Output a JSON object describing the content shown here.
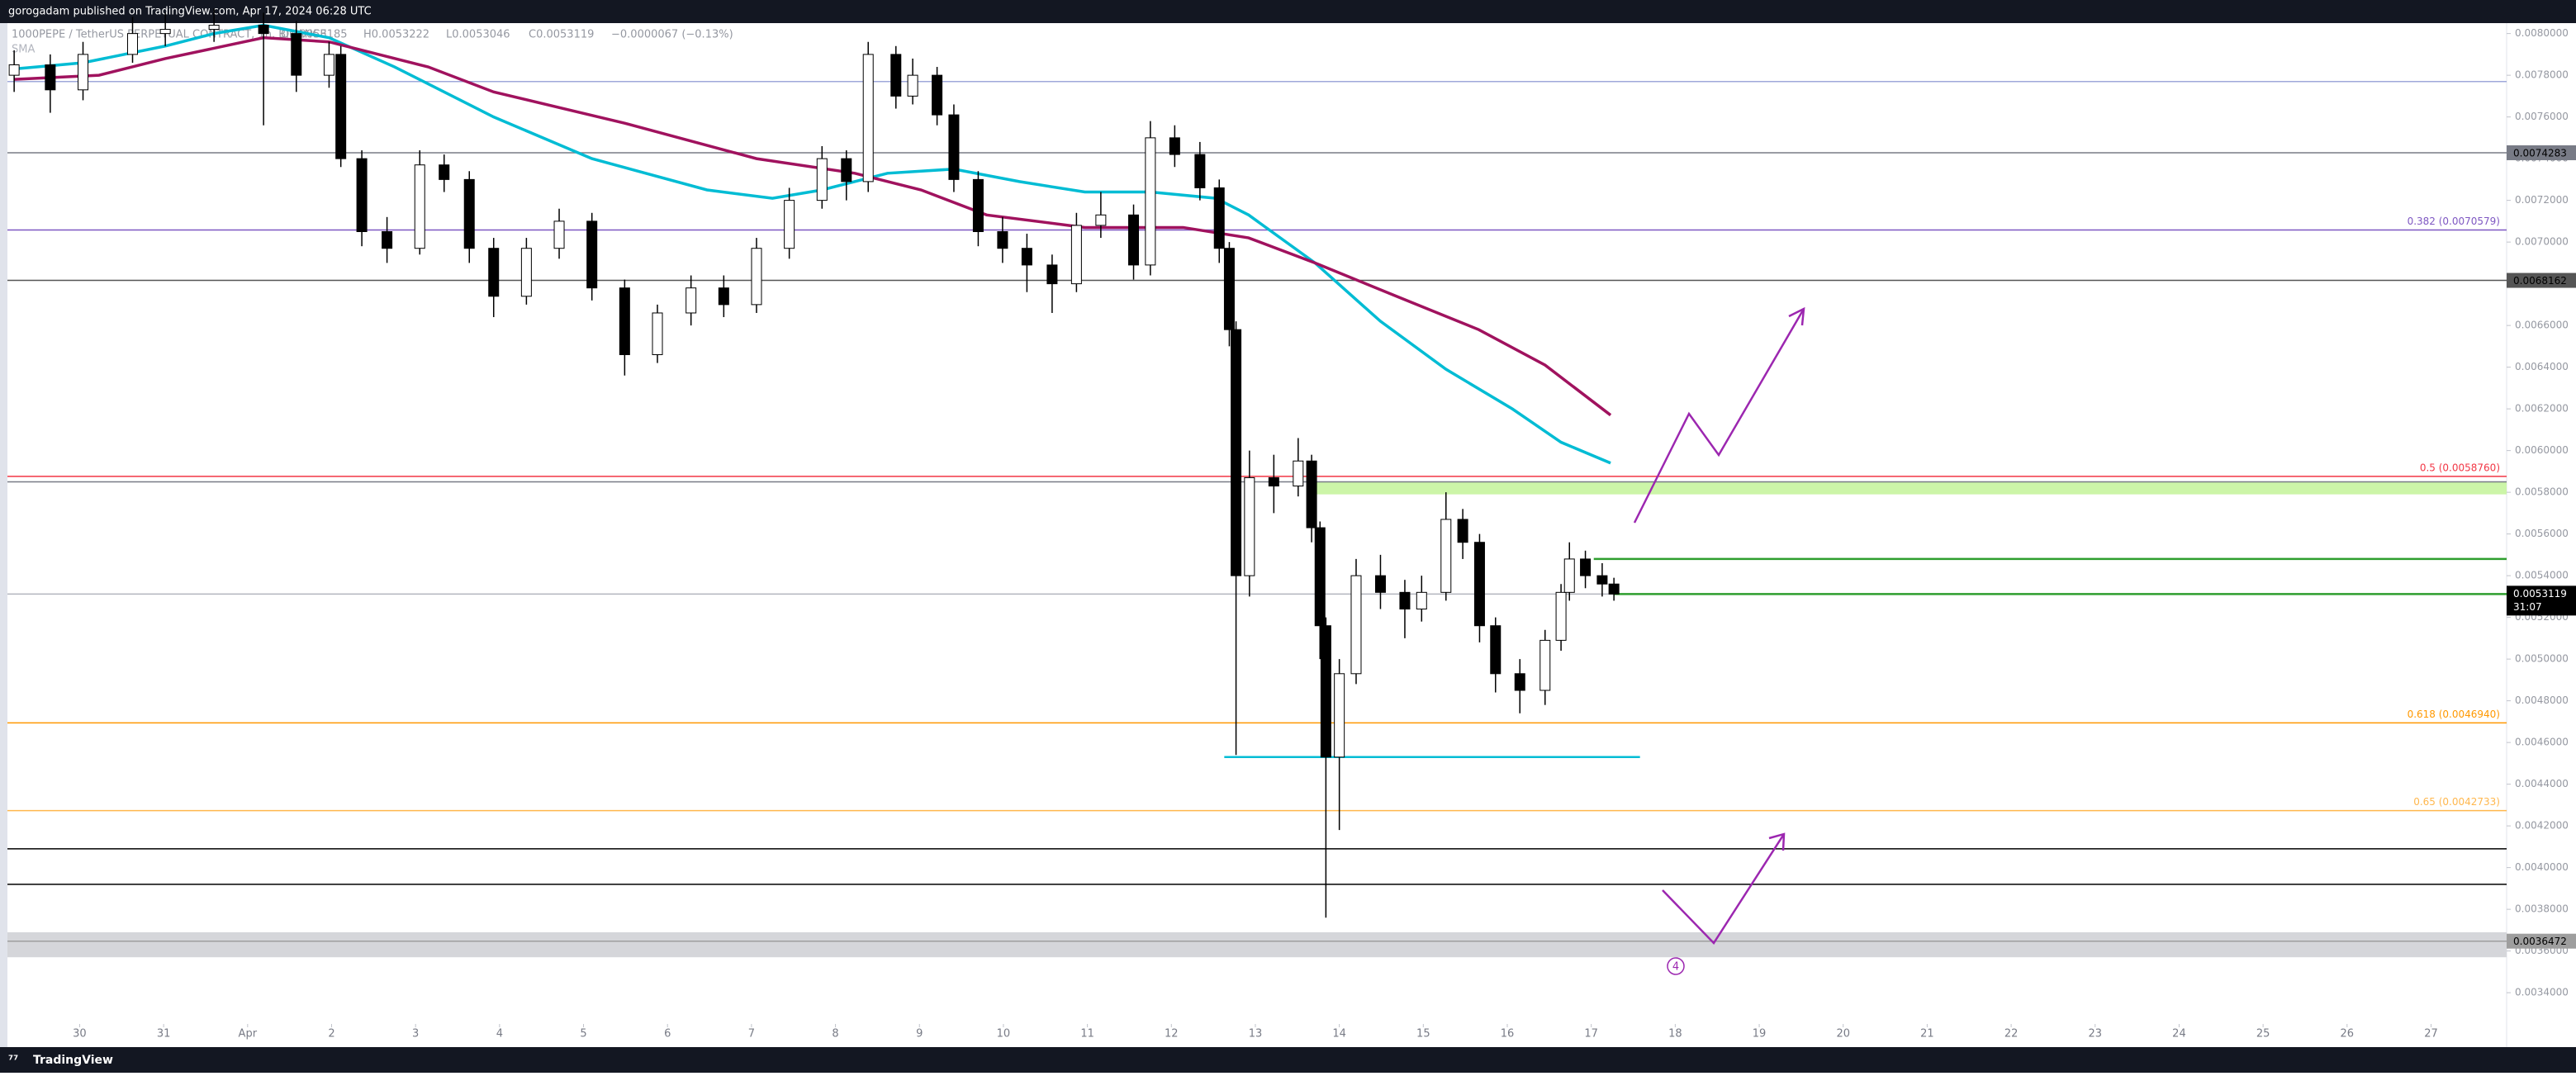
{
  "chart_data": {
    "type": "candlestick",
    "title": "gorogadam published on TradingView.com, Apr 17, 2024 06:28 UTC",
    "symbol": "1000PEPE / TetherUS PERPETUAL CONTRACT, 1h, BINANCE",
    "ohlc_text": [
      "O0.0053185",
      "H0.0053222",
      "L0.0053046",
      "C0.0053119",
      "−0.0000067 (−0.13%)"
    ],
    "indicator": "SMA",
    "footer": "TradingView",
    "countdown": "31:07",
    "wave_label": "4",
    "grid": false,
    "up_color": "#ffffff",
    "down_color": "#000000",
    "xlim": [
      -0.86,
      28.9
    ],
    "ylim": [
      0.00325,
      0.00805
    ],
    "xticks": [
      {
        "value": 0,
        "label": "30"
      },
      {
        "value": 1,
        "label": "31"
      },
      {
        "value": 2,
        "label": "Apr"
      },
      {
        "value": 3,
        "label": "2"
      },
      {
        "value": 4,
        "label": "3"
      },
      {
        "value": 5,
        "label": "4"
      },
      {
        "value": 6,
        "label": "5"
      },
      {
        "value": 7,
        "label": "6"
      },
      {
        "value": 8,
        "label": "7"
      },
      {
        "value": 9,
        "label": "8"
      },
      {
        "value": 10,
        "label": "9"
      },
      {
        "value": 11,
        "label": "10"
      },
      {
        "value": 12,
        "label": "11"
      },
      {
        "value": 13,
        "label": "12"
      },
      {
        "value": 14,
        "label": "13"
      },
      {
        "value": 15,
        "label": "14"
      },
      {
        "value": 16,
        "label": "15"
      },
      {
        "value": 17,
        "label": "16"
      },
      {
        "value": 18,
        "label": "17"
      },
      {
        "value": 19,
        "label": "18"
      },
      {
        "value": 20,
        "label": "19"
      },
      {
        "value": 21,
        "label": "20"
      },
      {
        "value": 22,
        "label": "21"
      },
      {
        "value": 23,
        "label": "22"
      },
      {
        "value": 24,
        "label": "23"
      },
      {
        "value": 25,
        "label": "24"
      },
      {
        "value": 26,
        "label": "25"
      },
      {
        "value": 27,
        "label": "26"
      },
      {
        "value": 28,
        "label": "27"
      }
    ],
    "yticks": [
      {
        "value": 0.0034,
        "label": "0.0034000"
      },
      {
        "value": 0.0036,
        "label": "0.0036000"
      },
      {
        "value": 0.0038,
        "label": "0.0038000"
      },
      {
        "value": 0.004,
        "label": "0.0040000"
      },
      {
        "value": 0.0042,
        "label": "0.0042000"
      },
      {
        "value": 0.0044,
        "label": "0.0044000"
      },
      {
        "value": 0.0046,
        "label": "0.0046000"
      },
      {
        "value": 0.0048,
        "label": "0.0048000"
      },
      {
        "value": 0.005,
        "label": "0.0050000"
      },
      {
        "value": 0.0052,
        "label": "0.0052000"
      },
      {
        "value": 0.0054,
        "label": "0.0054000"
      },
      {
        "value": 0.0056,
        "label": "0.0056000"
      },
      {
        "value": 0.0058,
        "label": "0.0058000"
      },
      {
        "value": 0.006,
        "label": "0.0060000"
      },
      {
        "value": 0.0062,
        "label": "0.0062000"
      },
      {
        "value": 0.0064,
        "label": "0.0064000"
      },
      {
        "value": 0.0066,
        "label": "0.0066000"
      },
      {
        "value": 0.0068,
        "label": "0.0068000"
      },
      {
        "value": 0.007,
        "label": "0.0070000"
      },
      {
        "value": 0.0072,
        "label": "0.0072000"
      },
      {
        "value": 0.0074,
        "label": "0.0074000"
      },
      {
        "value": 0.0076,
        "label": "0.0076000"
      },
      {
        "value": 0.0078,
        "label": "0.0078000"
      },
      {
        "value": 0.008,
        "label": "0.0080000"
      }
    ],
    "x": [
      -0.78,
      -0.35,
      0.04,
      0.63,
      1.02,
      1.6,
      2.19,
      2.58,
      2.97,
      3.11,
      3.36,
      3.66,
      4.05,
      4.34,
      4.64,
      4.93,
      5.32,
      5.71,
      6.1,
      6.49,
      6.88,
      7.28,
      7.67,
      8.06,
      8.45,
      8.84,
      9.13,
      9.39,
      9.72,
      9.92,
      10.21,
      10.41,
      10.7,
      10.99,
      11.28,
      11.58,
      11.87,
      12.16,
      12.55,
      12.75,
      13.04,
      13.34,
      13.57,
      13.69,
      13.77,
      13.93,
      14.22,
      14.51,
      14.67,
      14.77,
      14.84,
      15.0,
      15.2,
      15.49,
      15.78,
      15.98,
      16.27,
      16.47,
      16.67,
      16.86,
      17.15,
      17.45,
      17.64,
      17.74,
      17.93,
      18.13,
      18.27
    ],
    "open": [
      0.0078,
      0.00785,
      0.00773,
      0.0079,
      0.008,
      0.00802,
      0.00804,
      0.008,
      0.0078,
      0.0079,
      0.0074,
      0.00705,
      0.00697,
      0.00737,
      0.0073,
      0.00697,
      0.00674,
      0.00697,
      0.0071,
      0.00678,
      0.00646,
      0.00666,
      0.00678,
      0.0067,
      0.00697,
      0.0072,
      0.0074,
      0.00729,
      0.0079,
      0.0077,
      0.0078,
      0.00761,
      0.0073,
      0.00705,
      0.00697,
      0.00689,
      0.0068,
      0.00708,
      0.00713,
      0.00689,
      0.0075,
      0.00742,
      0.00726,
      0.00697,
      0.00658,
      0.0054,
      0.00587,
      0.00583,
      0.00595,
      0.00563,
      0.00516,
      0.00453,
      0.00493,
      0.0054,
      0.00532,
      0.00524,
      0.00532,
      0.00567,
      0.00556,
      0.00516,
      0.00493,
      0.00485,
      0.00509,
      0.00532,
      0.00548,
      0.0054,
      0.00536
    ],
    "high": [
      0.00792,
      0.0079,
      0.00796,
      0.00808,
      0.0081,
      0.00812,
      0.0081,
      0.00806,
      0.00796,
      0.00794,
      0.00744,
      0.00712,
      0.00744,
      0.00742,
      0.00734,
      0.00702,
      0.00702,
      0.00716,
      0.00714,
      0.00682,
      0.0067,
      0.00684,
      0.00684,
      0.00702,
      0.00726,
      0.00746,
      0.00744,
      0.00796,
      0.00794,
      0.00788,
      0.00784,
      0.00766,
      0.00734,
      0.00712,
      0.00704,
      0.00694,
      0.00714,
      0.00724,
      0.00718,
      0.00758,
      0.00756,
      0.00748,
      0.0073,
      0.007,
      0.00662,
      0.006,
      0.00598,
      0.00606,
      0.00598,
      0.00566,
      0.0052,
      0.005,
      0.00548,
      0.0055,
      0.00538,
      0.0054,
      0.0058,
      0.00572,
      0.0056,
      0.0052,
      0.005,
      0.00514,
      0.00536,
      0.00556,
      0.00552,
      0.00546,
      0.00539
    ],
    "low": [
      0.00772,
      0.00762,
      0.00768,
      0.00786,
      0.00794,
      0.00796,
      0.00756,
      0.00772,
      0.00774,
      0.00736,
      0.00698,
      0.0069,
      0.00694,
      0.00724,
      0.0069,
      0.00664,
      0.0067,
      0.00692,
      0.00672,
      0.00636,
      0.00642,
      0.0066,
      0.00664,
      0.00666,
      0.00692,
      0.00716,
      0.0072,
      0.00724,
      0.00764,
      0.00766,
      0.00756,
      0.00724,
      0.00698,
      0.0069,
      0.00676,
      0.00666,
      0.00676,
      0.00702,
      0.00682,
      0.00684,
      0.00736,
      0.0072,
      0.0069,
      0.0065,
      0.00454,
      0.0053,
      0.0057,
      0.00578,
      0.00556,
      0.005,
      0.00376,
      0.00418,
      0.00488,
      0.00524,
      0.0051,
      0.00518,
      0.00528,
      0.00548,
      0.00508,
      0.00484,
      0.00474,
      0.00478,
      0.00504,
      0.00528,
      0.00534,
      0.0053,
      0.00528
    ],
    "close": [
      0.00785,
      0.00773,
      0.0079,
      0.008,
      0.00802,
      0.00804,
      0.008,
      0.0078,
      0.0079,
      0.0074,
      0.00705,
      0.00697,
      0.00737,
      0.0073,
      0.00697,
      0.00674,
      0.00697,
      0.0071,
      0.00678,
      0.00646,
      0.00666,
      0.00678,
      0.0067,
      0.00697,
      0.0072,
      0.0074,
      0.00729,
      0.0079,
      0.0077,
      0.0078,
      0.00761,
      0.0073,
      0.00705,
      0.00697,
      0.00689,
      0.0068,
      0.00708,
      0.00713,
      0.00689,
      0.0075,
      0.00742,
      0.00726,
      0.00697,
      0.00658,
      0.0054,
      0.00587,
      0.00583,
      0.00595,
      0.00563,
      0.00516,
      0.00453,
      0.00493,
      0.0054,
      0.00532,
      0.00524,
      0.00532,
      0.00567,
      0.00556,
      0.00516,
      0.00493,
      0.00485,
      0.00509,
      0.00532,
      0.00548,
      0.0054,
      0.00536,
      0.0053119
    ],
    "series": [
      {
        "color": "#00bcd4",
        "x": [
          -0.78,
          0.04,
          1.02,
          1.6,
          2.19,
          2.97,
          3.75,
          4.93,
          6.1,
          7.47,
          8.25,
          8.84,
          9.62,
          10.41,
          11.19,
          11.97,
          12.75,
          13.53,
          13.92,
          14.71,
          15.49,
          16.27,
          17.06,
          17.64,
          18.23
        ],
        "values": [
          0.00783,
          0.00786,
          0.00794,
          0.008,
          0.00804,
          0.00798,
          0.00784,
          0.0076,
          0.0074,
          0.00725,
          0.00721,
          0.00725,
          0.00733,
          0.00735,
          0.00729,
          0.00724,
          0.00724,
          0.00721,
          0.00713,
          0.0069,
          0.00662,
          0.00639,
          0.0062,
          0.00604,
          0.00594
        ]
      },
      {
        "color": "#a0125e",
        "x": [
          -0.78,
          0.23,
          1.02,
          2.19,
          2.97,
          4.15,
          4.93,
          6.49,
          8.06,
          9.23,
          10.02,
          10.8,
          11.97,
          13.14,
          13.92,
          14.71,
          15.68,
          16.66,
          17.45,
          18.23
        ],
        "values": [
          0.00778,
          0.0078,
          0.00788,
          0.00798,
          0.00796,
          0.00784,
          0.00772,
          0.00757,
          0.0074,
          0.00733,
          0.00725,
          0.00713,
          0.00707,
          0.00707,
          0.00702,
          0.0069,
          0.00674,
          0.00658,
          0.00641,
          0.00617
        ]
      }
    ],
    "levels": [
      {
        "value": 0.00777,
        "color": "#9fa8da"
      },
      {
        "value": 0.0074283,
        "color": "#787b86",
        "box": true
      },
      {
        "value": 0.0070579,
        "color": "#7e57c2",
        "label": "0.382 (0.0070579)"
      },
      {
        "value": 0.0068162,
        "color": "#555555",
        "box": true
      },
      {
        "value": 0.005876,
        "color": "#f23645",
        "label": "0.5 (0.0058760)"
      },
      {
        "value": 0.00585,
        "color": "#787b86"
      },
      {
        "value": 0.0053119,
        "color": "#b2b5be"
      },
      {
        "value": 0.004694,
        "color": "#ff9800",
        "label": "0.618 (0.0046940)"
      },
      {
        "value": 0.0042733,
        "color": "#ffb74d",
        "label": "0.65 (0.0042733)"
      },
      {
        "value": 0.00409,
        "color": "#000000"
      },
      {
        "value": 0.00392,
        "color": "#000000"
      },
      {
        "value": 0.0036472,
        "color": "#9e9e9e",
        "box": true
      }
    ],
    "segments": [
      {
        "value": 0.00548,
        "from": 18.03,
        "color": "#2e9e2e"
      },
      {
        "value": 0.0053119,
        "from": 18.27,
        "color": "#2e9e2e"
      },
      {
        "value": 0.00453,
        "from": 13.63,
        "to": 18.58,
        "color": "#00bcd4"
      }
    ],
    "zones": [
      {
        "low": 0.00579,
        "high": 0.00585,
        "from": 14.7,
        "color": "#ccf5a8"
      },
      {
        "low": 0.00357,
        "high": 0.00369,
        "color": "#d5d6da"
      }
    ],
    "last_price": 0.0053119
  }
}
